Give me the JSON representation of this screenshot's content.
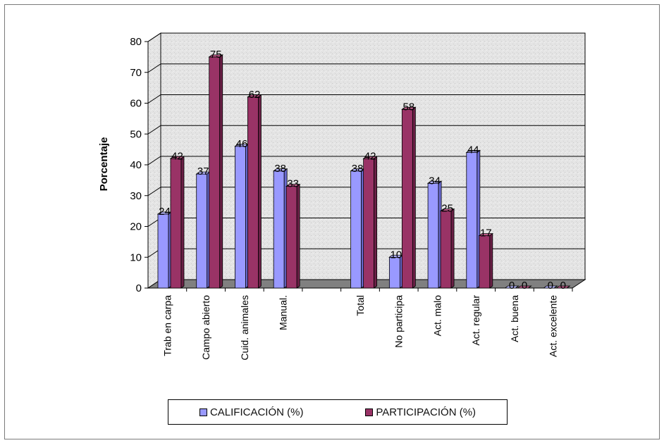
{
  "chart_data": {
    "type": "bar",
    "ylabel": "Porcentaje",
    "ylim": [
      0,
      80
    ],
    "yticks": [
      0,
      10,
      20,
      30,
      40,
      50,
      60,
      70,
      80
    ],
    "grid": true,
    "legend_position": "bottom",
    "categories": [
      "Trab en carpa",
      "Campo abierto",
      "Cuid. animales",
      "Manual.",
      "",
      "Total",
      "No participa",
      "Act. malo",
      "Act. regular",
      "Act. buena",
      "Act. excelente"
    ],
    "series": [
      {
        "name": "CALIFICACIÓN (%)",
        "color": "#9999ff",
        "values": [
          24,
          37,
          46,
          38,
          null,
          38,
          10,
          34,
          44,
          0,
          0
        ],
        "labels": [
          "24",
          "37",
          "46",
          "38",
          "",
          "38",
          "10",
          "34",
          "44",
          "0",
          "0"
        ]
      },
      {
        "name": "PARTICIPACIÓN (%)",
        "color": "#993366",
        "values": [
          42,
          75,
          62,
          33,
          null,
          42,
          58,
          25,
          17,
          0,
          0
        ],
        "labels": [
          "42",
          "75",
          "62",
          "33",
          "",
          "42",
          "58",
          "25",
          "17",
          "0",
          "0"
        ]
      }
    ]
  }
}
